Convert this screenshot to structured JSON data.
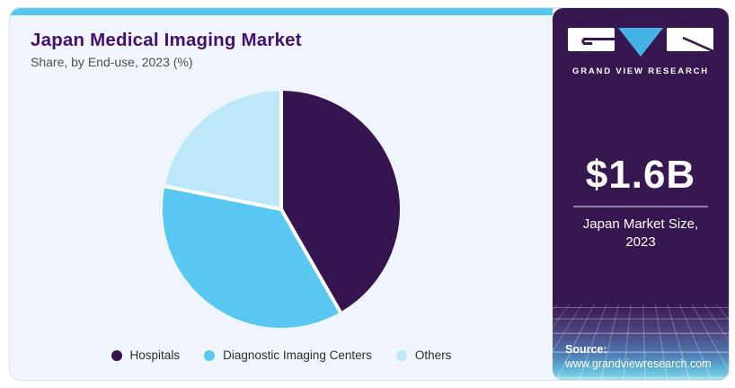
{
  "card": {
    "title": "Japan Medical Imaging Market",
    "subtitle": "Share, by End-use, 2023 (%)",
    "accent_bar_color": "#57c7f2",
    "background_color": "#eff5fa"
  },
  "chart_data": {
    "type": "pie",
    "title": "Japan Medical Imaging Market",
    "subtitle": "Share, by End-use, 2023 (%)",
    "unit": "%",
    "start_angle": "top",
    "direction": "clockwise",
    "slice_border_color": "#ffffff",
    "legend_position": "bottom",
    "slices": [
      {
        "label": "Hospitals",
        "value": 41.7,
        "color": "#351450"
      },
      {
        "label": "Diagnostic Imaging Centers",
        "value": 36.4,
        "color": "#58c8f2"
      },
      {
        "label": "Others",
        "value": 21.9,
        "color": "#bee7fa"
      }
    ]
  },
  "sidebar": {
    "background_color": "#371750",
    "logo": {
      "brand_name": "GRAND VIEW RESEARCH",
      "triangle_color": "#45b2e5",
      "block_color": "#ffffff"
    },
    "market_size_value": "$1.6B",
    "market_size_label": "Japan Market Size,\n2023",
    "source_label": "Source:",
    "source_url": "www.grandviewresearch.com"
  }
}
